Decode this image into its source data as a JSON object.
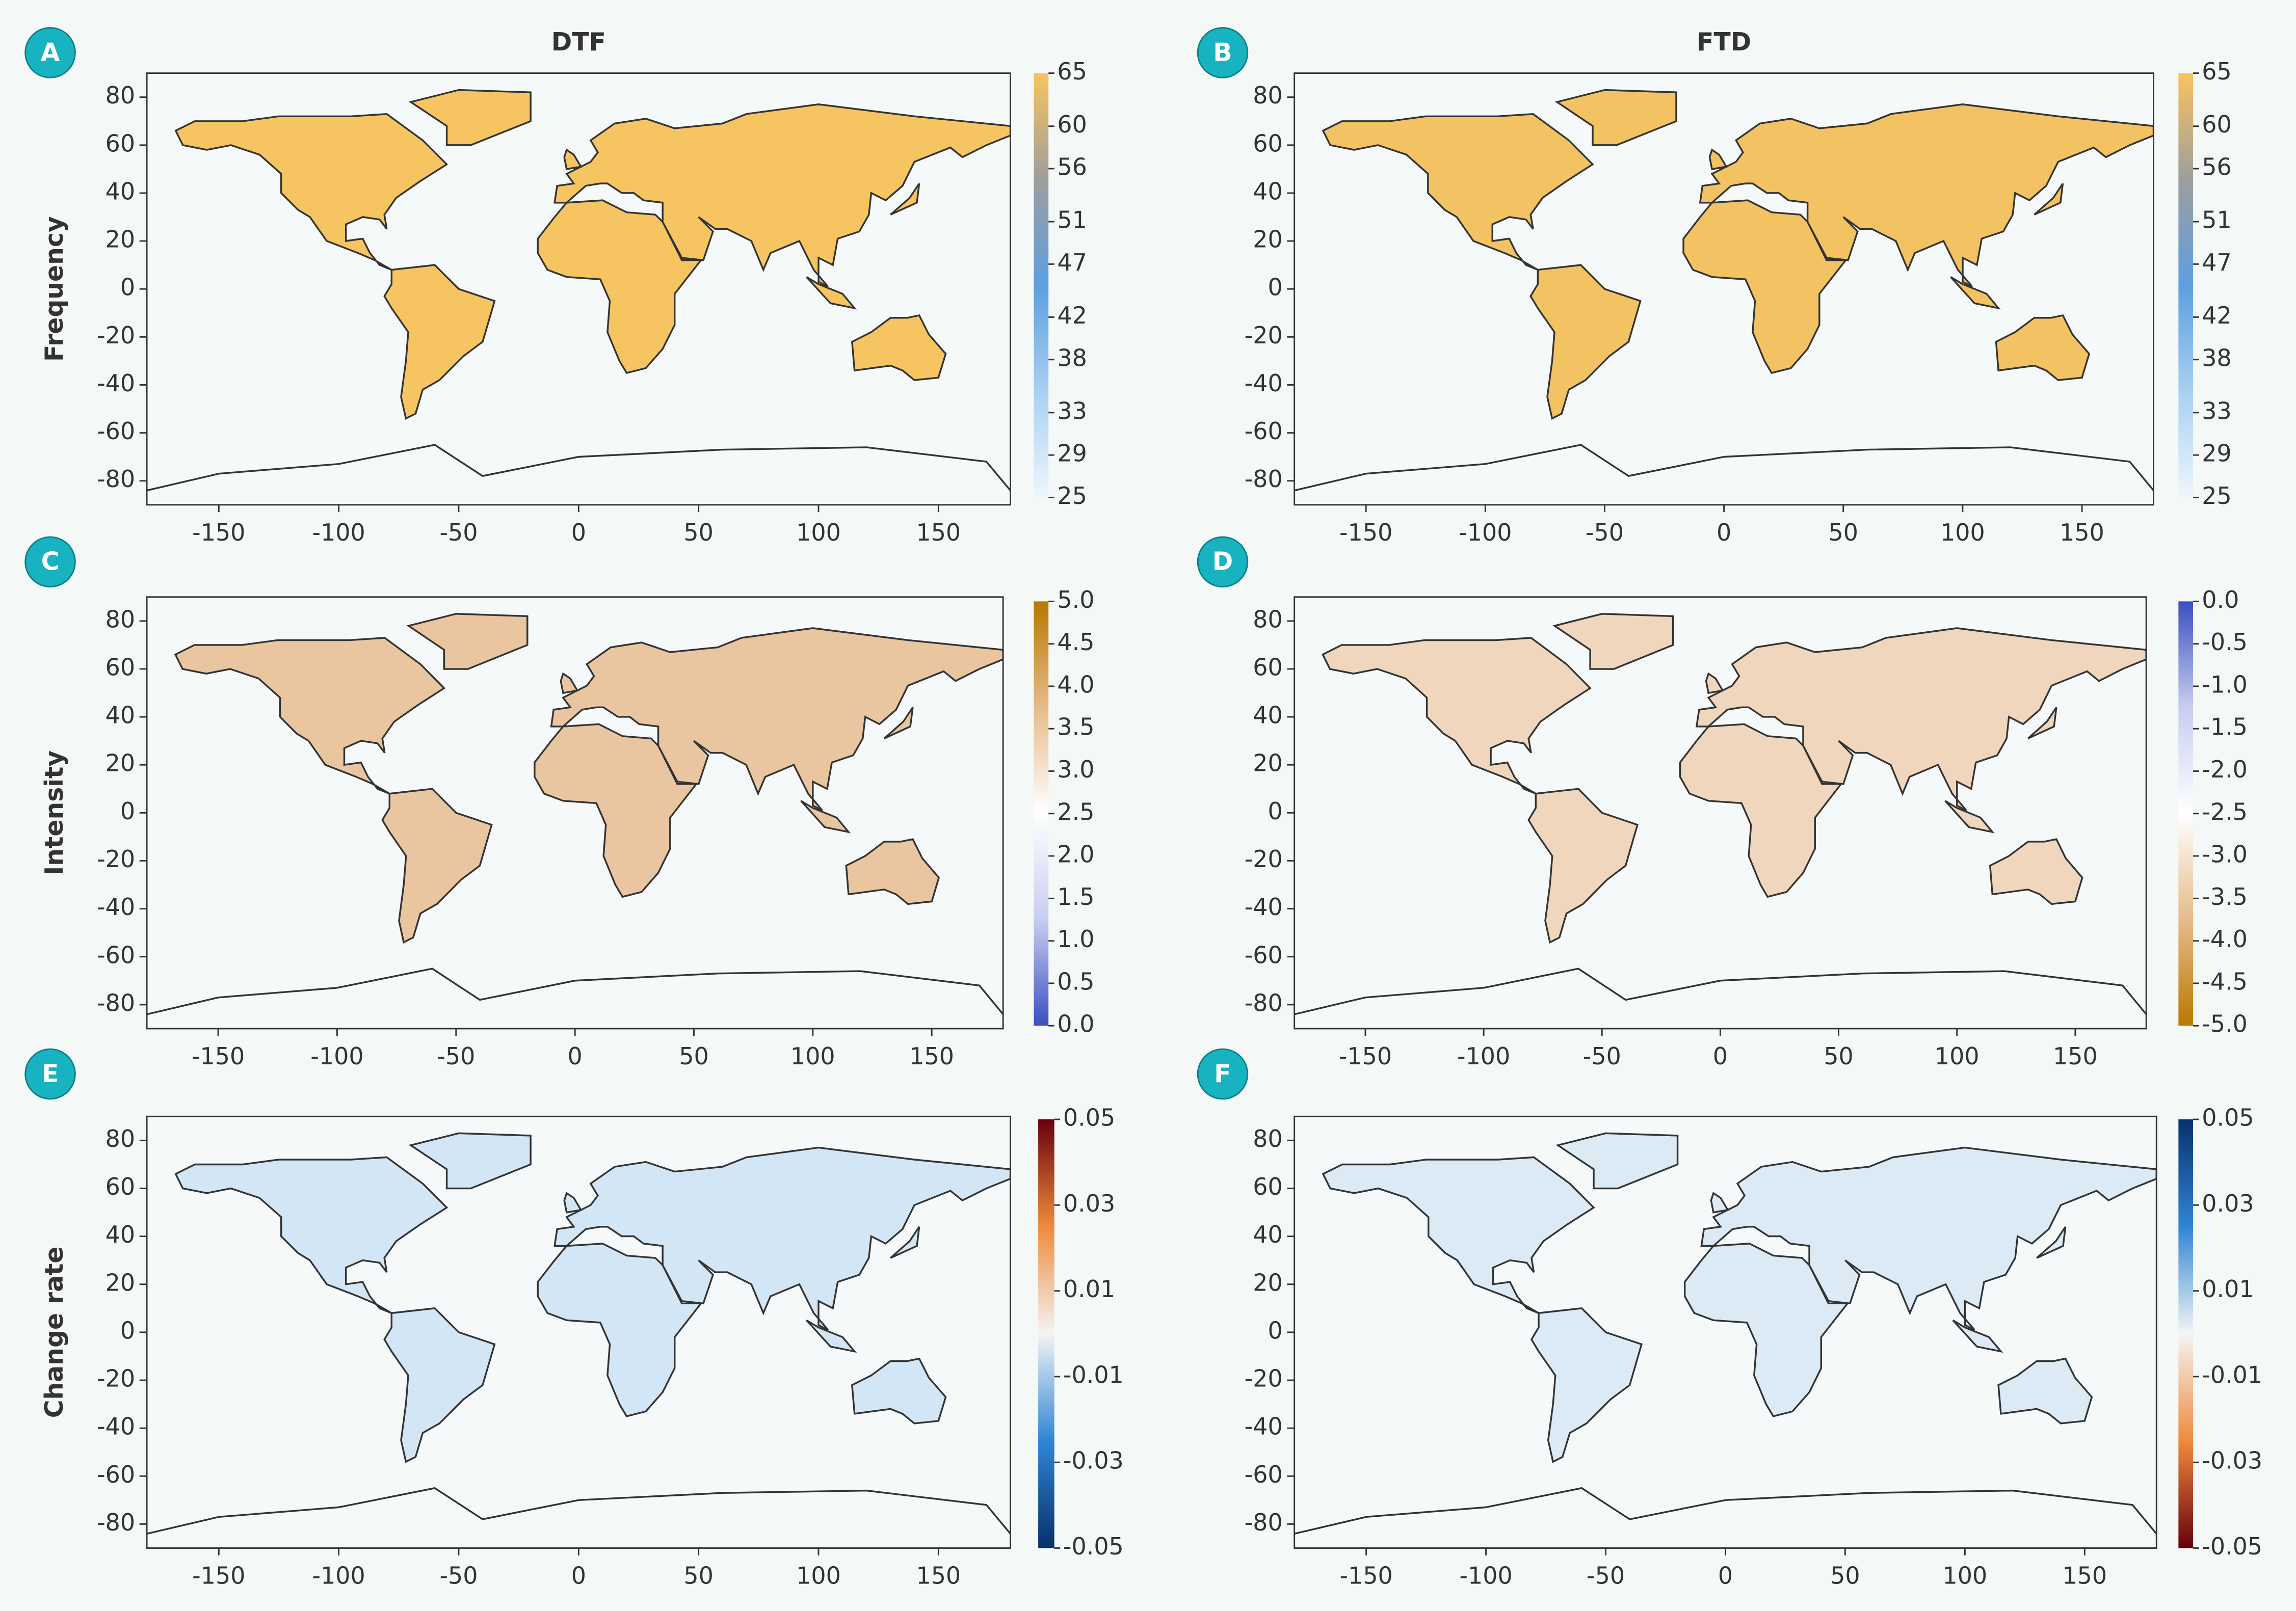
{
  "chart_data": [
    {
      "type": "heatmap",
      "panel": "A",
      "title": "DTF",
      "ylabel": "Frequency",
      "xlim": [
        -180,
        180
      ],
      "xticks": [
        -150,
        -100,
        -50,
        0,
        50,
        100,
        150
      ],
      "ylim": [
        -90,
        90
      ],
      "yticks": [
        -80,
        -60,
        -40,
        -20,
        0,
        20,
        40,
        60,
        80
      ],
      "land_color": "#f6c561",
      "colorbar": {
        "lim": [
          25,
          65
        ],
        "ticks": [
          25,
          29,
          33,
          38,
          42,
          47,
          51,
          56,
          60,
          65
        ],
        "colors": [
          "#eef6fc",
          "#a9d0f2",
          "#5d9fe0",
          "#9e9e9e",
          "#f9c35e"
        ]
      }
    },
    {
      "type": "heatmap",
      "panel": "B",
      "title": "FTD",
      "xlim": [
        -180,
        180
      ],
      "xticks": [
        -150,
        -100,
        -50,
        0,
        50,
        100,
        150
      ],
      "ylim": [
        -90,
        90
      ],
      "yticks": [
        -80,
        -60,
        -40,
        -20,
        0,
        20,
        40,
        60,
        80
      ],
      "land_color": "#f3c262",
      "colorbar": {
        "lim": [
          25,
          65
        ],
        "ticks": [
          25,
          29,
          33,
          38,
          42,
          47,
          51,
          56,
          60,
          65
        ],
        "colors": [
          "#eef6fc",
          "#a9d0f2",
          "#5d9fe0",
          "#9e9e9e",
          "#f9c35e"
        ]
      }
    },
    {
      "type": "heatmap",
      "panel": "C",
      "ylabel": "Intensity",
      "xlim": [
        -180,
        180
      ],
      "xticks": [
        -150,
        -100,
        -50,
        0,
        50,
        100,
        150
      ],
      "ylim": [
        -90,
        90
      ],
      "yticks": [
        -80,
        -60,
        -40,
        -20,
        0,
        20,
        40,
        60,
        80
      ],
      "land_color": "#e9c5a0",
      "colorbar": {
        "lim": [
          0,
          5
        ],
        "ticks": [
          {
            "value": 0,
            "label": "0.0"
          },
          {
            "value": 0.5,
            "label": "0.5"
          },
          {
            "value": 1,
            "label": "1.0"
          },
          {
            "value": 1.5,
            "label": "1.5"
          },
          {
            "value": 2,
            "label": "2.0"
          },
          {
            "value": 2.5,
            "label": "2.5"
          },
          {
            "value": 3,
            "label": "3.0"
          },
          {
            "value": 3.5,
            "label": "3.5"
          },
          {
            "value": 4,
            "label": "4.0"
          },
          {
            "value": 4.5,
            "label": "4.5"
          },
          {
            "value": 5,
            "label": "5.0"
          }
        ],
        "colors": [
          "#3b4fc0",
          "#c8cdf0",
          "#ffffff",
          "#e6bb8a",
          "#b97800"
        ]
      }
    },
    {
      "type": "heatmap",
      "panel": "D",
      "xlim": [
        -180,
        180
      ],
      "xticks": [
        -150,
        -100,
        -50,
        0,
        50,
        100,
        150
      ],
      "ylim": [
        -90,
        90
      ],
      "yticks": [
        -80,
        -60,
        -40,
        -20,
        0,
        20,
        40,
        60,
        80
      ],
      "land_color": "#efd6bd",
      "colorbar": {
        "lim": [
          -5,
          0
        ],
        "ticks": [
          {
            "value": 0,
            "label": "0.0"
          },
          {
            "value": -0.5,
            "label": "-0.5"
          },
          {
            "value": -1,
            "label": "-1.0"
          },
          {
            "value": -1.5,
            "label": "-1.5"
          },
          {
            "value": -2,
            "label": "-2.0"
          },
          {
            "value": -2.5,
            "label": "-2.5"
          },
          {
            "value": -3,
            "label": "-3.0"
          },
          {
            "value": -3.5,
            "label": "-3.5"
          },
          {
            "value": -4,
            "label": "-4.0"
          },
          {
            "value": -4.5,
            "label": "-4.5"
          },
          {
            "value": -5,
            "label": "-5.0"
          }
        ],
        "colors": [
          "#b97800",
          "#e6bb8a",
          "#ffffff",
          "#c8cdf0",
          "#3b4fc0"
        ]
      }
    },
    {
      "type": "heatmap",
      "panel": "E",
      "ylabel": "Change rate",
      "xlim": [
        -180,
        180
      ],
      "xticks": [
        -150,
        -100,
        -50,
        0,
        50,
        100,
        150
      ],
      "ylim": [
        -90,
        90
      ],
      "yticks": [
        -80,
        -60,
        -40,
        -20,
        0,
        20,
        40,
        60,
        80
      ],
      "land_color": "#d3e6f5",
      "colorbar": {
        "lim": [
          -0.05,
          0.05
        ],
        "ticks": [
          -0.05,
          -0.03,
          -0.01,
          0.01,
          0.03,
          0.05
        ],
        "colors": [
          "#08306b",
          "#2f86d6",
          "#f4f4f4",
          "#f08a3c",
          "#67000d"
        ]
      }
    },
    {
      "type": "heatmap",
      "panel": "F",
      "xlim": [
        -180,
        180
      ],
      "xticks": [
        -150,
        -100,
        -50,
        0,
        50,
        100,
        150
      ],
      "ylim": [
        -90,
        90
      ],
      "yticks": [
        -80,
        -60,
        -40,
        -20,
        0,
        20,
        40,
        60,
        80
      ],
      "land_color": "#dbeaf5",
      "colorbar": {
        "lim": [
          -0.05,
          0.05
        ],
        "ticks": [
          -0.05,
          -0.03,
          -0.01,
          0.01,
          0.03,
          0.05
        ],
        "colors": [
          "#67000d",
          "#f08a3c",
          "#f4f4f4",
          "#2f86d6",
          "#08306b"
        ]
      }
    }
  ]
}
